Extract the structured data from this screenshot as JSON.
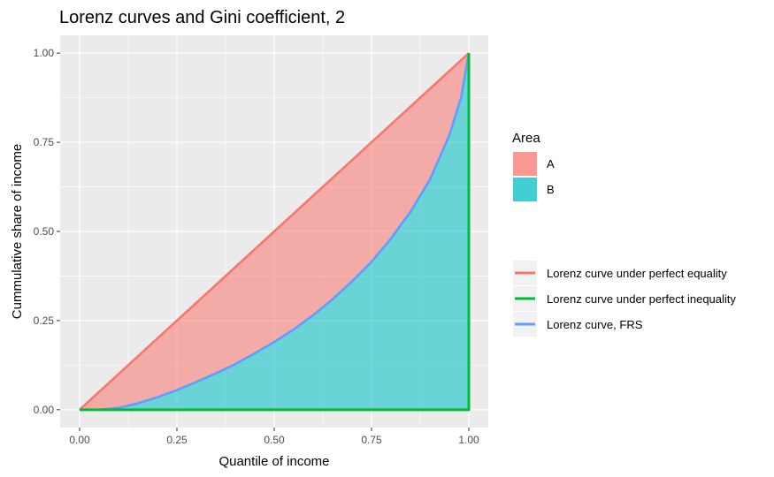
{
  "chart_data": {
    "type": "area",
    "title": "Lorenz curves and Gini coefficient, 2",
    "xlabel": "Quantile of income",
    "ylabel": "Cummulative share of income",
    "xlim": [
      -0.05,
      1.05
    ],
    "ylim": [
      -0.05,
      1.05
    ],
    "x_ticks": [
      0,
      0.25,
      0.5,
      0.75,
      1
    ],
    "y_ticks": [
      0,
      0.25,
      0.5,
      0.75,
      1
    ],
    "x_tick_labels": [
      "0.00",
      "0.25",
      "0.50",
      "0.75",
      "1.00"
    ],
    "y_tick_labels": [
      "0.00",
      "0.25",
      "0.50",
      "0.75",
      "1.00"
    ],
    "grid": true,
    "legend_position": "right",
    "fill_legend": {
      "title": "Area",
      "items": [
        {
          "label": "A",
          "color": "#F8766D"
        },
        {
          "label": "B",
          "color": "#00BFC4"
        }
      ]
    },
    "line_legend": {
      "items": [
        {
          "label": "Lorenz curve under perfect equality",
          "color": "#F8766D"
        },
        {
          "label": "Lorenz curve under perfect inequality",
          "color": "#00BA38"
        },
        {
          "label": "Lorenz curve, FRS",
          "color": "#619CFF"
        }
      ]
    },
    "series": [
      {
        "id": "equality",
        "color": "#F8766D",
        "x": [
          0,
          1
        ],
        "y": [
          0,
          1
        ]
      },
      {
        "id": "inequality",
        "color": "#00BA38",
        "x": [
          0,
          1,
          1
        ],
        "y": [
          0,
          0,
          1
        ]
      },
      {
        "id": "frs",
        "color": "#619CFF",
        "x": [
          0,
          0.05,
          0.1,
          0.15,
          0.2,
          0.25,
          0.3,
          0.35,
          0.4,
          0.45,
          0.5,
          0.55,
          0.6,
          0.65,
          0.7,
          0.75,
          0.8,
          0.85,
          0.9,
          0.95,
          0.98,
          1
        ],
        "y": [
          0,
          0,
          0.005,
          0.018,
          0.035,
          0.055,
          0.078,
          0.102,
          0.128,
          0.158,
          0.19,
          0.225,
          0.265,
          0.31,
          0.36,
          0.415,
          0.48,
          0.555,
          0.645,
          0.77,
          0.875,
          1
        ]
      }
    ]
  }
}
